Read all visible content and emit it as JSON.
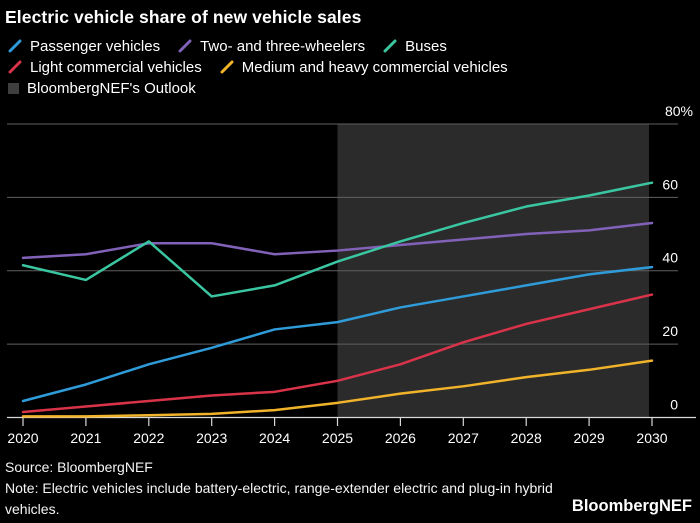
{
  "title": "Electric vehicle share of new vehicle sales",
  "legend": {
    "items": [
      {
        "label": "Passenger vehicles",
        "color": "#2f9bd8",
        "icon": "slash"
      },
      {
        "label": "Two- and three-wheelers",
        "color": "#8262b8",
        "icon": "slash"
      },
      {
        "label": "Buses",
        "color": "#3bc6a2",
        "icon": "slash"
      },
      {
        "label": "Light commercial vehicles",
        "color": "#d9334a",
        "icon": "slash"
      },
      {
        "label": "Medium and heavy commercial vehicles",
        "color": "#f0b32a",
        "icon": "slash"
      },
      {
        "label": "BloombergNEF's Outlook",
        "color": "#3e3e3e",
        "icon": "square"
      }
    ]
  },
  "chart_data": {
    "type": "line",
    "title": "Electric vehicle share of new vehicle sales",
    "x": [
      2020,
      2021,
      2022,
      2023,
      2024,
      2025,
      2026,
      2027,
      2028,
      2029,
      2030
    ],
    "series": [
      {
        "name": "Passenger vehicles",
        "color": "#2f9bd8",
        "values": [
          4.5,
          9,
          14.5,
          19,
          24,
          26,
          30,
          33,
          36,
          39,
          41
        ]
      },
      {
        "name": "Two- and three-wheelers",
        "color": "#8262b8",
        "values": [
          43.5,
          44.5,
          47.5,
          47.5,
          44.5,
          45.5,
          47,
          48.5,
          50,
          51,
          53
        ]
      },
      {
        "name": "Buses",
        "color": "#3bc6a2",
        "values": [
          41.5,
          37.5,
          48,
          33,
          36,
          42.5,
          48,
          53,
          57.5,
          60.5,
          64
        ]
      },
      {
        "name": "Light commercial vehicles",
        "color": "#d9334a",
        "values": [
          1.5,
          3,
          4.5,
          6,
          7,
          10,
          14.5,
          20.5,
          25.5,
          29.5,
          33.5
        ]
      },
      {
        "name": "Medium and heavy commercial vehicles",
        "color": "#f0b32a",
        "values": [
          0.3,
          0.3,
          0.6,
          1,
          2,
          4,
          6.5,
          8.5,
          11,
          13,
          15.5
        ]
      }
    ],
    "ylim": [
      0,
      80
    ],
    "y_ticks": [
      {
        "value": 80,
        "label": "80%"
      },
      {
        "value": 60,
        "label": "60"
      },
      {
        "value": 40,
        "label": "40"
      },
      {
        "value": 20,
        "label": "20"
      },
      {
        "value": 0,
        "label": "0"
      }
    ],
    "grid": "horizontal",
    "axis_label_side": "right",
    "legend_position": "top",
    "outlook_band": {
      "label": "BloombergNEF's Outlook",
      "start": 2025,
      "end": 2030,
      "color": "#2b2b2b"
    }
  },
  "colors": {
    "background": "#000000",
    "gridline": "#606060",
    "axis": "#d9d9d9",
    "text": "#ffffff"
  },
  "footer": {
    "source": "Source: BloombergNEF",
    "note": "Note: Electric vehicles include battery-electric, range-extender electric and plug-in hybrid vehicles.",
    "logo": "BloombergNEF"
  }
}
